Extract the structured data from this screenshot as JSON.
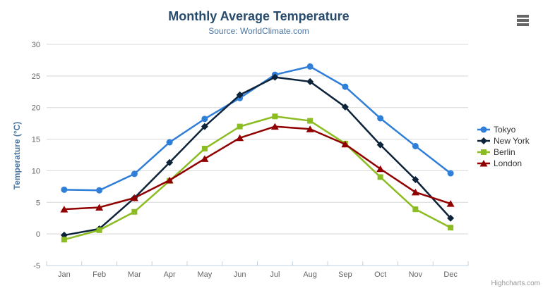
{
  "chart": {
    "title": "Monthly Average Temperature",
    "subtitle": "Source: WorldClimate.com",
    "y_axis_title": "Temperature (°C)",
    "credits": "Highcharts.com"
  },
  "colors": {
    "title": "#274b6d",
    "subtitle": "#4d759e",
    "axis_title": "#4d759e",
    "axis_labels": "#666666",
    "grid_line": "#d8d8d8",
    "axis_line": "#c0d0e0",
    "legend_text": "#333333",
    "credits": "#999999",
    "burger": "#666666",
    "background": "#ffffff"
  },
  "chart_data": {
    "type": "line",
    "title": "Monthly Average Temperature",
    "subtitle": "Source: WorldClimate.com",
    "xlabel": "",
    "ylabel": "Temperature (°C)",
    "categories": [
      "Jan",
      "Feb",
      "Mar",
      "Apr",
      "May",
      "Jun",
      "Jul",
      "Aug",
      "Sep",
      "Oct",
      "Nov",
      "Dec"
    ],
    "ylim": [
      -5,
      30
    ],
    "yticks": [
      -5,
      0,
      5,
      10,
      15,
      20,
      25,
      30
    ],
    "grid": true,
    "legend_position": "right",
    "series": [
      {
        "name": "Tokyo",
        "color": "#2f7ed8",
        "marker": "circle",
        "values": [
          7.0,
          6.9,
          9.5,
          14.5,
          18.2,
          21.5,
          25.2,
          26.5,
          23.3,
          18.3,
          13.9,
          9.6
        ]
      },
      {
        "name": "New York",
        "color": "#0d233a",
        "marker": "diamond",
        "values": [
          -0.2,
          0.8,
          5.7,
          11.3,
          17.0,
          22.0,
          24.8,
          24.1,
          20.1,
          14.1,
          8.6,
          2.5
        ]
      },
      {
        "name": "Berlin",
        "color": "#8bbc21",
        "marker": "square",
        "values": [
          -0.9,
          0.6,
          3.5,
          8.4,
          13.5,
          17.0,
          18.6,
          17.9,
          14.3,
          9.0,
          3.9,
          1.0
        ]
      },
      {
        "name": "London",
        "color": "#910000",
        "marker": "triangle",
        "values": [
          3.9,
          4.2,
          5.7,
          8.5,
          11.9,
          15.2,
          17.0,
          16.6,
          14.2,
          10.3,
          6.6,
          4.8
        ]
      }
    ]
  }
}
